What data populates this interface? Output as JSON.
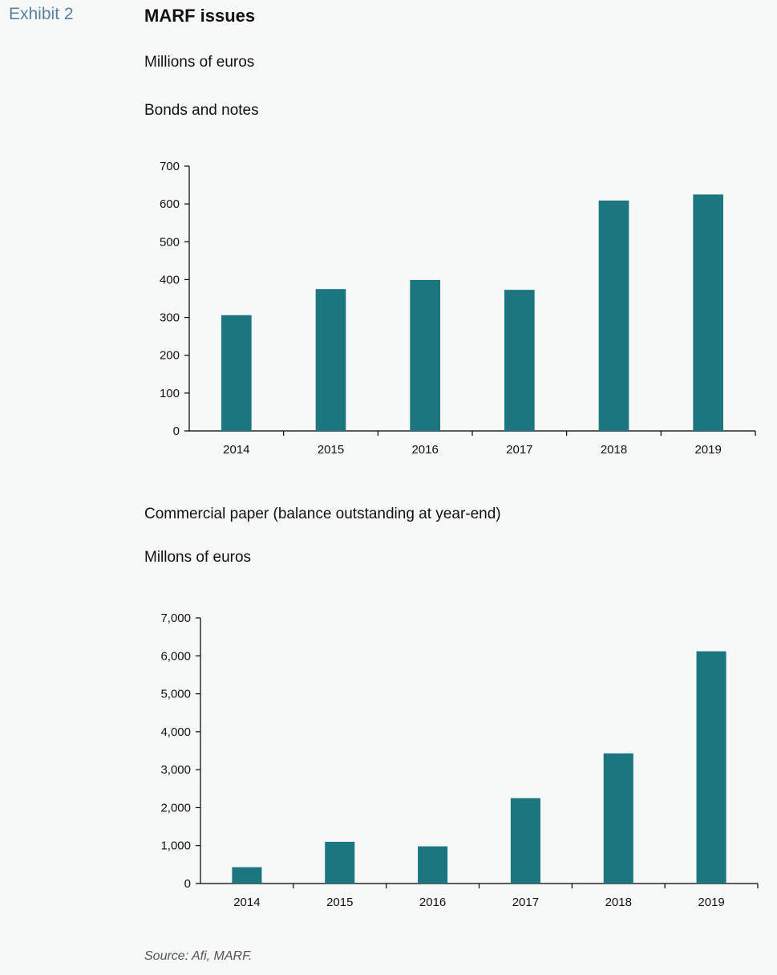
{
  "header": {
    "exhibit_label": "Exhibit 2",
    "title": "MARF issues",
    "units": "Millions of euros"
  },
  "footer": {
    "source": "Source: Afi, MARF."
  },
  "colors": {
    "bar": "#1b7680",
    "axis": "#000000"
  },
  "chart_data": [
    {
      "type": "bar",
      "title": "Bonds and notes",
      "subtitle": "",
      "categories": [
        "2014",
        "2015",
        "2016",
        "2017",
        "2018",
        "2019"
      ],
      "values": [
        306,
        375,
        399,
        373,
        609,
        625
      ],
      "y_tick_labels": [
        "0",
        "100",
        "200",
        "300",
        "400",
        "500",
        "600",
        "700"
      ],
      "ylim": [
        0,
        700
      ],
      "grid": false,
      "xlabel": "",
      "ylabel": ""
    },
    {
      "type": "bar",
      "title": "Commercial paper (balance outstanding at year-end)",
      "subtitle": "Millons of euros",
      "categories": [
        "2014",
        "2015",
        "2016",
        "2017",
        "2018",
        "2019"
      ],
      "values": [
        430,
        1100,
        980,
        2250,
        3430,
        6120
      ],
      "y_tick_labels": [
        "0",
        "1,000",
        "2,000",
        "3,000",
        "4,000",
        "5,000",
        "6,000",
        "7,000"
      ],
      "ylim": [
        0,
        7000
      ],
      "grid": false,
      "xlabel": "",
      "ylabel": ""
    }
  ]
}
